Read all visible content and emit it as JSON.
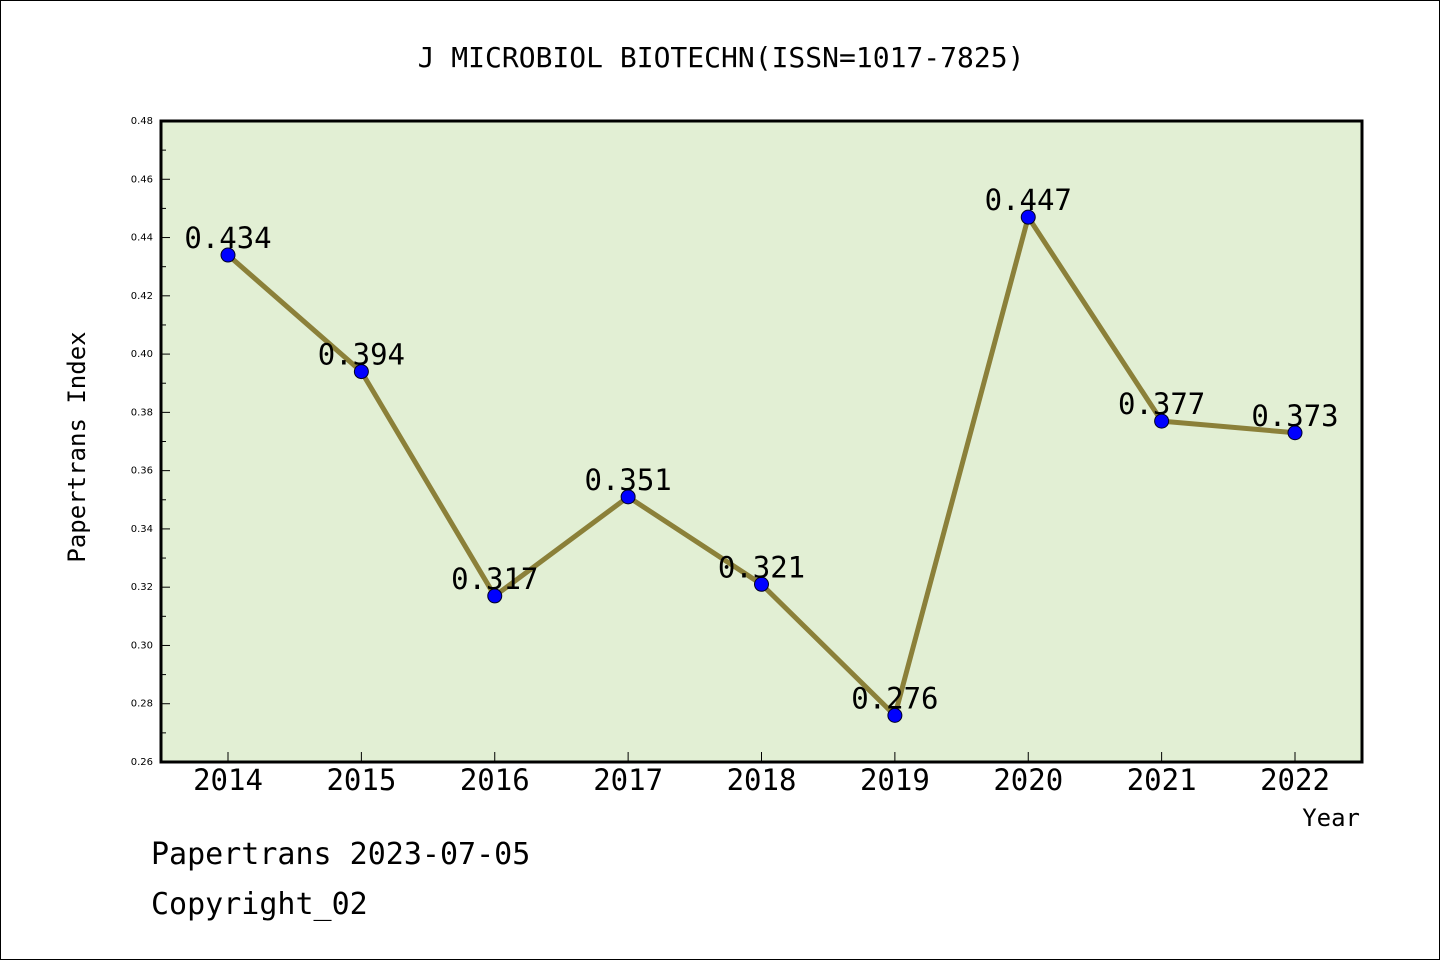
{
  "chart_data": {
    "type": "line",
    "title": "J MICROBIOL BIOTECHN(ISSN=1017-7825)",
    "xlabel": "Year",
    "ylabel": "Papertrans Index",
    "x": [
      "2014",
      "2015",
      "2016",
      "2017",
      "2018",
      "2019",
      "2020",
      "2021",
      "2022"
    ],
    "series": [
      {
        "values": [
          0.434,
          0.394,
          0.317,
          0.351,
          0.321,
          0.276,
          0.447,
          0.377,
          0.373
        ],
        "data_labels": [
          "0.434",
          "0.394",
          "0.317",
          "0.351",
          "0.321",
          "0.276",
          "0.447",
          "0.377",
          "0.373"
        ]
      }
    ],
    "ylim": [
      0.26,
      0.48
    ],
    "y_ticks": [
      "0.26",
      "0.28",
      "0.30",
      "0.32",
      "0.34",
      "0.36",
      "0.38",
      "0.40",
      "0.42",
      "0.44",
      "0.46",
      "0.48"
    ],
    "grid": false,
    "colors": {
      "plot_background": "#e2efd4",
      "line": "#8b8039",
      "marker": "#0000ff"
    }
  },
  "footer": {
    "date_text": "Papertrans 2023-07-05",
    "copyright_text": "Copyright_02"
  }
}
